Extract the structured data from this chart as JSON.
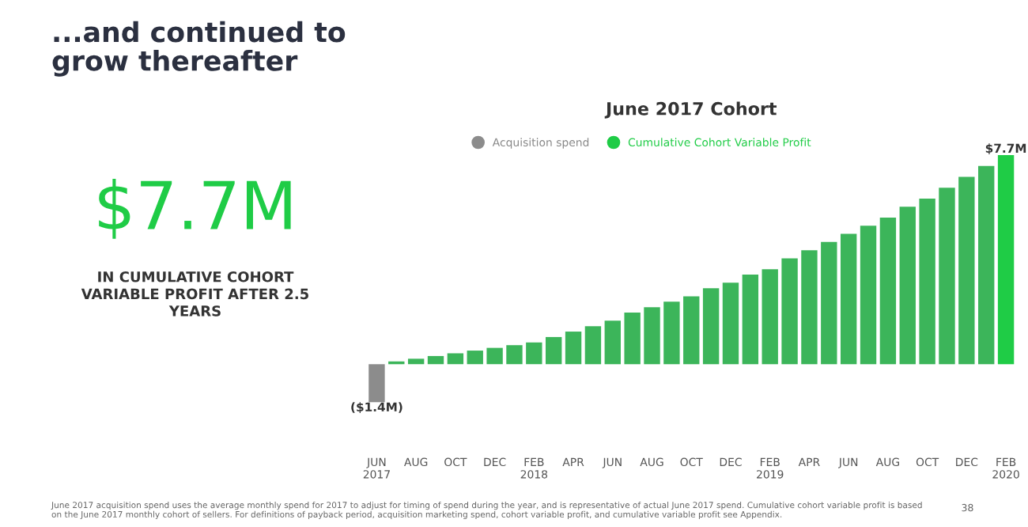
{
  "chart_data": {
    "type": "bar",
    "title": "June 2017 Cohort",
    "categories": [
      "JUN\n2017",
      null,
      "AUG",
      null,
      "OCT",
      null,
      "DEC",
      null,
      "FEB\n2018",
      null,
      "APR",
      null,
      "JUN",
      null,
      "AUG",
      null,
      "OCT",
      null,
      "DEC",
      null,
      "FEB\n2019",
      null,
      "APR",
      null,
      "JUN",
      null,
      "AUG",
      null,
      "OCT",
      null,
      "DEC",
      null,
      "FEB\n2020"
    ],
    "series": [
      {
        "name": "Acquisition spend",
        "color": "#8c8c8c",
        "values": [
          -1.4,
          null,
          null,
          null,
          null,
          null,
          null,
          null,
          null,
          null,
          null,
          null,
          null,
          null,
          null,
          null,
          null,
          null,
          null,
          null,
          null,
          null,
          null,
          null,
          null,
          null,
          null,
          null,
          null,
          null,
          null,
          null,
          null
        ],
        "value_labels": [
          "($1.4M)",
          null,
          null,
          null,
          null,
          null,
          null,
          null,
          null,
          null,
          null,
          null,
          null,
          null,
          null,
          null,
          null,
          null,
          null,
          null,
          null,
          null,
          null,
          null,
          null,
          null,
          null,
          null,
          null,
          null,
          null,
          null,
          null
        ]
      },
      {
        "name": "Cumulative Cohort Variable Profit",
        "color": "#1fcc46",
        "colors": [
          "#3cb55a",
          "#3cb55a",
          "#3cb55a",
          "#3cb55a",
          "#3cb55a",
          "#3cb55a",
          "#3cb55a",
          "#3cb55a",
          "#3cb55a",
          "#3cb55a",
          "#3cb55a",
          "#3cb55a",
          "#3cb55a",
          "#3cb55a",
          "#3cb55a",
          "#3cb55a",
          "#3cb55a",
          "#3cb55a",
          "#3cb55a",
          "#3cb55a",
          "#3cb55a",
          "#3cb55a",
          "#3cb55a",
          "#3cb55a",
          "#3cb55a",
          "#3cb55a",
          "#3cb55a",
          "#3cb55a",
          "#3cb55a",
          "#3cb55a",
          "#3cb55a",
          "#3cb55a",
          "#1fcc46"
        ],
        "values": [
          null,
          0.1,
          0.2,
          0.3,
          0.4,
          0.5,
          0.6,
          0.7,
          0.8,
          1.0,
          1.2,
          1.4,
          1.6,
          1.9,
          2.1,
          2.3,
          2.5,
          2.8,
          3.0,
          3.3,
          3.5,
          3.9,
          4.2,
          4.5,
          4.8,
          5.1,
          5.4,
          5.8,
          6.1,
          6.5,
          6.9,
          7.3,
          7.7
        ],
        "value_labels": [
          null,
          null,
          null,
          null,
          null,
          null,
          null,
          null,
          null,
          null,
          null,
          null,
          null,
          null,
          null,
          null,
          null,
          null,
          null,
          null,
          null,
          null,
          null,
          null,
          null,
          null,
          null,
          null,
          null,
          null,
          null,
          null,
          "$7.7M"
        ]
      }
    ],
    "legend": "top",
    "annotations": [
      "...and continued to\ngrow thereafter",
      "$7.7M",
      "IN CUMULATIVE COHORT\nVARIABLE PROFIT AFTER 2.5\nYEARS",
      "June 2017 acquisition spend uses the average monthly spend for 2017 to adjust for timing of spend during the year, and is representative of actual June 2017 spend. Cumulative cohort variable profit is based\non the June 2017 monthly cohort of sellers. For definitions of payback period, acquisition marketing spend, cohort variable profit, and cumulative variable profit see Appendix.",
      "38"
    ]
  }
}
